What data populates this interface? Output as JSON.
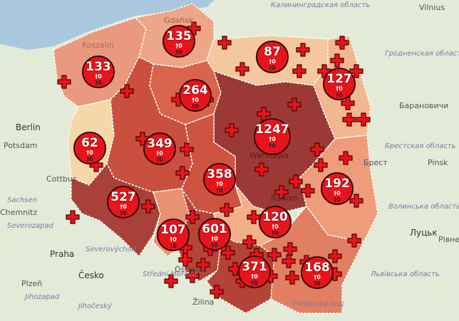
{
  "colors": {
    "sea": "#a9c8e0",
    "land": "#e4ead8",
    "marker": "#e8141c",
    "border": "#ffffff"
  },
  "regions": [
    {
      "id": "zachodniopomorskie",
      "cases": "133",
      "deaths": "†0",
      "recovered": "†0",
      "color": "#e99a7e"
    },
    {
      "id": "pomorskie",
      "cases": "135",
      "deaths": "†0",
      "recovered": "†0",
      "color": "#eea688"
    },
    {
      "id": "warminsko-mazurskie",
      "cases": "87",
      "deaths": "†0",
      "recovered": "†0",
      "color": "#f5c79d"
    },
    {
      "id": "podlaskie",
      "cases": "127",
      "deaths": "†0",
      "recovered": "†0",
      "color": "#f2b78e"
    },
    {
      "id": "lubuskie",
      "cases": "62",
      "deaths": "†0",
      "recovered": "†0",
      "color": "#f5d8a8"
    },
    {
      "id": "wielkopolskie",
      "cases": "349",
      "deaths": "†0",
      "recovered": "†0",
      "color": "#c9503e"
    },
    {
      "id": "kujawsko-pomorskie",
      "cases": "264",
      "deaths": "†0",
      "recovered": "†0",
      "color": "#da634b"
    },
    {
      "id": "mazowieckie",
      "cases": "1247",
      "deaths": "†0",
      "recovered": "†0",
      "color": "#9b3a34"
    },
    {
      "id": "lodzkie",
      "cases": "358",
      "deaths": "†0",
      "recovered": "†0",
      "color": "#cc5440"
    },
    {
      "id": "lubelskie",
      "cases": "192",
      "deaths": "†0",
      "recovered": "†0",
      "color": "#ee9c79"
    },
    {
      "id": "dolnoslaskie",
      "cases": "527",
      "deaths": "†0",
      "recovered": "†0",
      "color": "#a84139"
    },
    {
      "id": "opolskie",
      "cases": "107",
      "deaths": "†0",
      "recovered": "†0",
      "color": "#e8926f"
    },
    {
      "id": "slaskie",
      "cases": "601",
      "deaths": "†0",
      "recovered": "†0",
      "color": "#b64438"
    },
    {
      "id": "swietokrzyskie",
      "cases": "120",
      "deaths": "†0",
      "recovered": "†0",
      "color": "#f2b089"
    },
    {
      "id": "malopolskie",
      "cases": "371",
      "deaths": "†0",
      "recovered": "†0",
      "color": "#b54236"
    },
    {
      "id": "podkarpackie",
      "cases": "168",
      "deaths": "†0",
      "recovered": "†0",
      "color": "#e07f62"
    }
  ],
  "places": {
    "vilnius": "Vilnius",
    "kaliningrad": "Калининградская область",
    "grodno": "Гродненская область",
    "baranovichi": "Барановичи",
    "brest_obl": "Брестская область",
    "brest": "Брест",
    "pinsk": "Pinsk",
    "volyn": "Волинська область",
    "lutsk": "Луцьк",
    "rivne": "Рівне",
    "lviv": "Львівська область",
    "berlin": "Berlin",
    "potsdam": "Potsdam",
    "cottbus": "Cottbus",
    "sachsen": "Sachsen",
    "chemnitz": "Chemnitz",
    "severozapad": "Severozapad",
    "praha": "Praha",
    "cesko": "Česko",
    "plzen": "Plzeň",
    "jihozapad": "Jihozapad",
    "jihocesky": "Jihočeský",
    "strední": "Střední Morava",
    "zilina": "Žilina",
    "presov": "Prešovský kraj",
    "warszawa": "Warszawa",
    "radom": "Radom",
    "gdansk": "Gdańsk",
    "koszalin": "Koszalin",
    "severovychod": "Severovýchod",
    "ostrava": "Ostrava"
  }
}
